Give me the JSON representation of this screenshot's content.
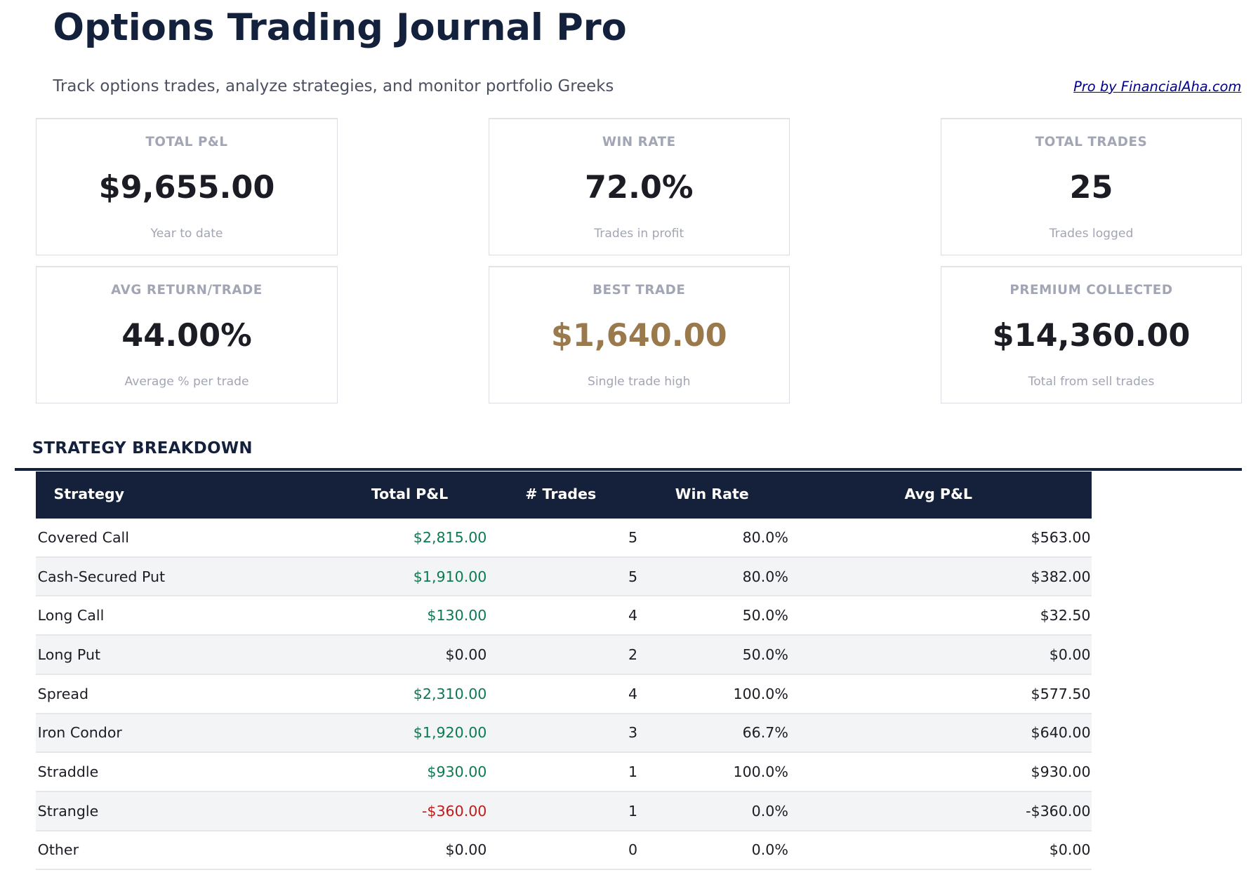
{
  "header": {
    "title": "Options Trading Journal Pro",
    "subtitle": "Track options trades, analyze strategies, and monitor portfolio Greeks",
    "link": "Pro by FinancialAha.com"
  },
  "cards": [
    {
      "label": "TOTAL P&L",
      "value": "$9,655.00",
      "sub": "Year to date"
    },
    {
      "label": "WIN RATE",
      "value": "72.0%",
      "sub": "Trades in profit"
    },
    {
      "label": "TOTAL TRADES",
      "value": "25",
      "sub": "Trades logged"
    },
    {
      "label": "AVG RETURN/TRADE",
      "value": "44.00%",
      "sub": "Average % per trade"
    },
    {
      "label": "BEST TRADE",
      "value": "$1,640.00",
      "sub": "Single trade high"
    },
    {
      "label": "PREMIUM COLLECTED",
      "value": "$14,360.00",
      "sub": "Total from sell trades"
    }
  ],
  "colors": {
    "navy": "#15213b",
    "positive": "#0b7a50",
    "negative": "#c01a1a",
    "best_trade": "#9a7a4d"
  },
  "strategy": {
    "title": "STRATEGY BREAKDOWN",
    "columns": [
      "Strategy",
      "Total P&L",
      "# Trades",
      "Win Rate",
      "Avg P&L"
    ],
    "rows": [
      {
        "strategy": "Covered Call",
        "total": "$2,815.00",
        "trades": "5",
        "win": "80.0%",
        "avg": "$563.00",
        "sign": "pos"
      },
      {
        "strategy": "Cash-Secured Put",
        "total": "$1,910.00",
        "trades": "5",
        "win": "80.0%",
        "avg": "$382.00",
        "sign": "pos"
      },
      {
        "strategy": "Long Call",
        "total": "$130.00",
        "trades": "4",
        "win": "50.0%",
        "avg": "$32.50",
        "sign": "pos"
      },
      {
        "strategy": "Long Put",
        "total": "$0.00",
        "trades": "2",
        "win": "50.0%",
        "avg": "$0.00",
        "sign": "zero"
      },
      {
        "strategy": "Spread",
        "total": "$2,310.00",
        "trades": "4",
        "win": "100.0%",
        "avg": "$577.50",
        "sign": "pos"
      },
      {
        "strategy": "Iron Condor",
        "total": "$1,920.00",
        "trades": "3",
        "win": "66.7%",
        "avg": "$640.00",
        "sign": "pos"
      },
      {
        "strategy": "Straddle",
        "total": "$930.00",
        "trades": "1",
        "win": "100.0%",
        "avg": "$930.00",
        "sign": "pos"
      },
      {
        "strategy": "Strangle",
        "total": "-$360.00",
        "trades": "1",
        "win": "0.0%",
        "avg": "-$360.00",
        "sign": "neg"
      },
      {
        "strategy": "Other",
        "total": "$0.00",
        "trades": "0",
        "win": "0.0%",
        "avg": "$0.00",
        "sign": "zero"
      }
    ]
  }
}
